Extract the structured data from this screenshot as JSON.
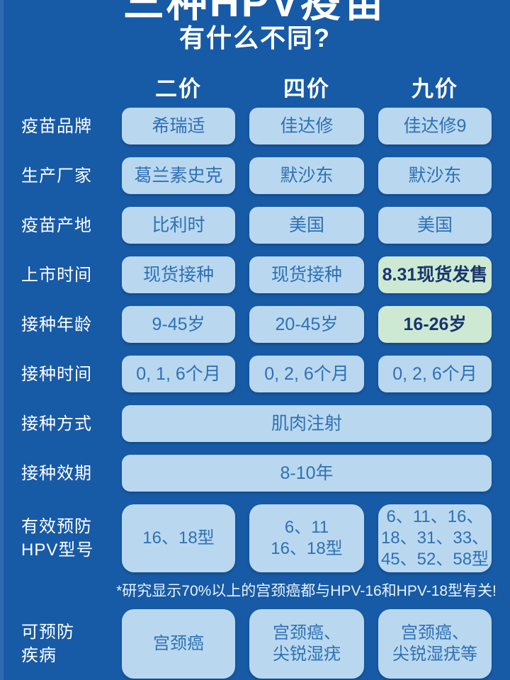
{
  "title": "三种HPV疫苗",
  "subtitle": "有什么不同?",
  "columns": [
    "二价",
    "四价",
    "九价"
  ],
  "rows": [
    {
      "label": "疫苗品牌",
      "cells": [
        "希瑞适",
        "佳达修",
        "佳达修9"
      ]
    },
    {
      "label": "生产厂家",
      "cells": [
        "葛兰素史克",
        "默沙东",
        "默沙东"
      ]
    },
    {
      "label": "疫苗产地",
      "cells": [
        "比利时",
        "美国",
        "美国"
      ]
    },
    {
      "label": "上市时间",
      "cells": [
        "现货接种",
        "现货接种",
        "8.31现货发售"
      ]
    },
    {
      "label": "接种年龄",
      "cells": [
        "9-45岁",
        "20-45岁",
        "16-26岁"
      ]
    },
    {
      "label": "接种时间",
      "cells": [
        "0, 1, 6个月",
        "0, 2, 6个月",
        "0, 2, 6个月"
      ]
    },
    {
      "label": "接种方式",
      "span": "肌肉注射"
    },
    {
      "label": "接种效期",
      "span": "8-10年"
    },
    {
      "label": "有效预防\nHPV型号",
      "cells": [
        "16、18型",
        "6、11\n16、18型",
        "6、11、16、\n18、31、33、\n45、52、58型"
      ]
    },
    {
      "label": "可预防\n疾病",
      "cells": [
        "宫颈癌",
        "宫颈癌、\n尖锐湿疣",
        "宫颈癌、\n尖锐湿疣等"
      ]
    }
  ],
  "note": "*研究显示70%以上的宫颈癌都与HPV-16和HPV-18型有关!",
  "highlighted_cells": [
    "上市时间-九价",
    "接种年龄-九价"
  ],
  "colors": {
    "background": "#175aa6",
    "cell_background": "#b9d8ef",
    "cell_text": "#2f70b5",
    "highlight_background": "#cee9d3",
    "highlight_text": "#17356d",
    "label_text": "#ffffff",
    "note_text": "#e8f3fd"
  }
}
